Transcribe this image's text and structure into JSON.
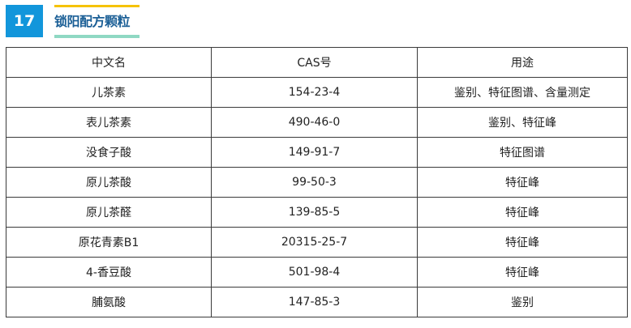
{
  "section": {
    "number": "17",
    "title": "锁阳配方颗粒",
    "colors": {
      "badge": "#1296db",
      "title": "#1b5f96",
      "top_bar": "#f5c200",
      "bottom_bar": "#8fd8c3"
    }
  },
  "table": {
    "headers": [
      "中文名",
      "CAS号",
      "用途"
    ],
    "rows": [
      [
        "儿茶素",
        "154-23-4",
        "鉴别、特征图谱、含量测定"
      ],
      [
        "表儿茶素",
        "490-46-0",
        "鉴别、特征峰"
      ],
      [
        "没食子酸",
        "149-91-7",
        "特征图谱"
      ],
      [
        "原儿茶酸",
        "99-50-3",
        "特征峰"
      ],
      [
        "原儿茶醛",
        "139-85-5",
        "特征峰"
      ],
      [
        "原花青素B1",
        "20315-25-7",
        "特征峰"
      ],
      [
        "4-香豆酸",
        "501-98-4",
        "特征峰"
      ],
      [
        "脯氨酸",
        "147-85-3",
        "鉴别"
      ]
    ]
  }
}
